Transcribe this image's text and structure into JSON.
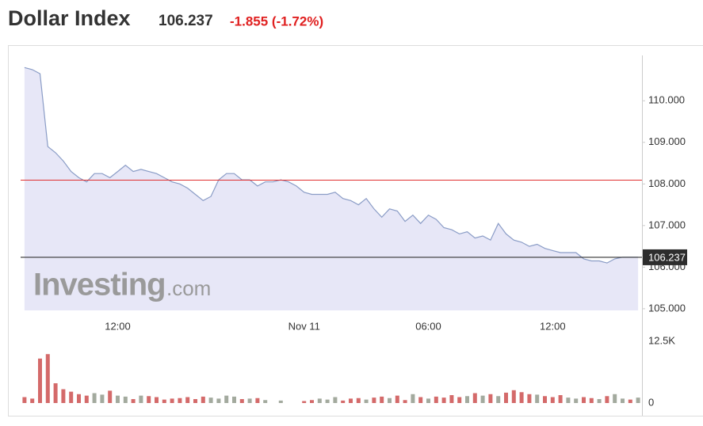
{
  "header": {
    "title": "Dollar Index",
    "price": "106.237",
    "change": "-1.855 (-1.72%)"
  },
  "chart_data": {
    "type": "line",
    "watermark": "Investing",
    "watermark_suffix": ".com",
    "categories": [
      null,
      null,
      null,
      null,
      null,
      null,
      null,
      null,
      null,
      null,
      null,
      null,
      "12:00",
      null,
      null,
      null,
      null,
      null,
      null,
      null,
      null,
      null,
      null,
      null,
      null,
      null,
      null,
      null,
      null,
      null,
      null,
      null,
      null,
      null,
      null,
      null,
      "Nov 11",
      null,
      null,
      null,
      null,
      null,
      null,
      null,
      null,
      null,
      null,
      null,
      null,
      null,
      null,
      null,
      "06:00",
      null,
      null,
      null,
      null,
      null,
      null,
      null,
      null,
      null,
      null,
      null,
      null,
      null,
      null,
      null,
      "12:00",
      null,
      null,
      null,
      null,
      null,
      null,
      null,
      null,
      null,
      null,
      null
    ],
    "values": [
      110.8,
      110.75,
      110.65,
      108.9,
      108.75,
      108.55,
      108.3,
      108.15,
      108.05,
      108.25,
      108.25,
      108.15,
      108.3,
      108.45,
      108.3,
      108.35,
      108.3,
      108.25,
      108.15,
      108.05,
      108.0,
      107.9,
      107.75,
      107.6,
      107.7,
      108.1,
      108.25,
      108.25,
      108.1,
      108.1,
      107.95,
      108.05,
      108.05,
      108.1,
      108.05,
      107.95,
      107.8,
      107.75,
      107.75,
      107.75,
      107.8,
      107.65,
      107.6,
      107.5,
      107.65,
      107.4,
      107.2,
      107.4,
      107.35,
      107.1,
      107.25,
      107.05,
      107.25,
      107.15,
      106.95,
      106.9,
      106.8,
      106.85,
      106.7,
      106.75,
      106.65,
      107.05,
      106.8,
      106.65,
      106.6,
      106.5,
      106.55,
      106.45,
      106.4,
      106.35,
      106.35,
      106.35,
      106.2,
      106.15,
      106.15,
      106.1,
      106.2,
      106.24,
      106.237,
      106.237
    ],
    "color": "#8a9cc6",
    "area_color": "#e7e7f7",
    "ylim": [
      104.96,
      110.9
    ],
    "yticks": [
      {
        "value": 105,
        "label": "105.000"
      },
      {
        "value": 106,
        "label": "106.000"
      },
      {
        "value": 107,
        "label": "107.000"
      },
      {
        "value": 108,
        "label": "108.000"
      },
      {
        "value": 109,
        "label": "109.000"
      },
      {
        "value": 110,
        "label": "110.000"
      }
    ],
    "prev_close": 108.092,
    "prev_close_color": "#e03030",
    "last_line": {
      "value": 106.237,
      "label": "106.237"
    },
    "volume": [
      1200,
      900,
      9000,
      9900,
      4000,
      2800,
      2300,
      1800,
      1500,
      2000,
      1700,
      2500,
      1500,
      1300,
      800,
      1500,
      1400,
      1200,
      700,
      900,
      1000,
      1200,
      800,
      1300,
      1100,
      900,
      1500,
      1300,
      800,
      900,
      1000,
      600,
      0,
      500,
      0,
      0,
      400,
      600,
      900,
      700,
      1200,
      500,
      900,
      1000,
      700,
      1100,
      1300,
      1000,
      1500,
      600,
      1800,
      1200,
      900,
      1300,
      1100,
      1600,
      1200,
      1400,
      2000,
      1500,
      1800,
      1400,
      2100,
      2600,
      2200,
      1800,
      1700,
      1400,
      1200,
      1600,
      1100,
      900,
      1200,
      1000,
      800,
      1400,
      1800,
      900,
      700,
      1100
    ],
    "volume_ylim": [
      0,
      12500
    ],
    "volume_ticks": [
      0,
      {
        "value": 12500,
        "label": "12.5K"
      }
    ],
    "up_color": "#a3aa9e",
    "down_color": "#d46a6a"
  }
}
